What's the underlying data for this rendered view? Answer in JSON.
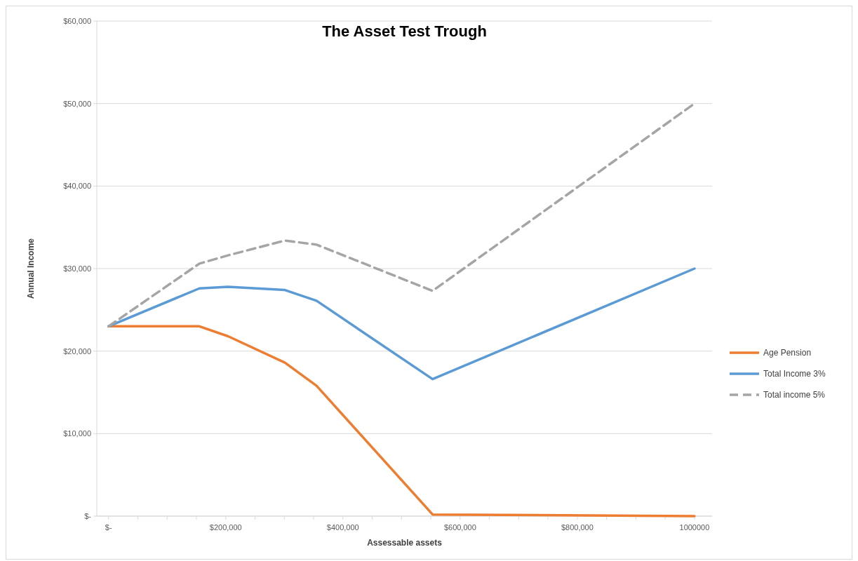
{
  "chart_data": {
    "type": "line",
    "title": "The Asset Test Trough",
    "xlabel": "Assessable assets",
    "ylabel": "Annual Income",
    "x": [
      0,
      155000,
      204000,
      301000,
      355000,
      553000,
      1000000
    ],
    "xlim": [
      -20000,
      1030000
    ],
    "xticks": [
      {
        "value": 0,
        "label": "$-"
      },
      {
        "value": 200000,
        "label": "$200,000"
      },
      {
        "value": 400000,
        "label": "$400,000"
      },
      {
        "value": 600000,
        "label": "$600,000"
      },
      {
        "value": 800000,
        "label": "$800,000"
      },
      1000000
    ],
    "ylim": [
      0,
      60000
    ],
    "yticks": [
      {
        "value": 0,
        "label": "$-"
      },
      {
        "value": 10000,
        "label": "$10,000"
      },
      {
        "value": 20000,
        "label": "$20,000"
      },
      {
        "value": 30000,
        "label": "$30,000"
      },
      {
        "value": 40000,
        "label": "$40,000"
      },
      {
        "value": 50000,
        "label": "$50,000"
      },
      {
        "value": 60000,
        "label": "$60,000"
      }
    ],
    "grid": "y",
    "legend": "right",
    "marker": "none",
    "series": [
      {
        "name": "Age Pension",
        "color": "#ed7d31",
        "line_style": "solid",
        "values": [
          23000,
          23000,
          21800,
          18600,
          15800,
          200,
          0
        ]
      },
      {
        "name": "Total Income 3%",
        "color": "#5b9bd5",
        "line_style": "solid",
        "values": [
          23000,
          27600,
          27800,
          27400,
          26100,
          16600,
          30000
        ]
      },
      {
        "name": "Total income 5%",
        "color": "#a5a5a5",
        "line_style": "dashed",
        "values": [
          23000,
          30600,
          31600,
          33400,
          32900,
          27300,
          50000
        ]
      }
    ]
  }
}
